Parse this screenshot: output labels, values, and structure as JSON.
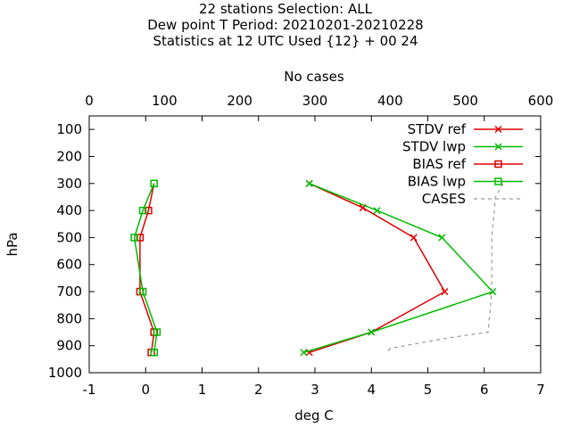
{
  "header": {
    "line1": "22 stations Selection: ALL",
    "line2": "Dew point T  Period: 20210201-20210228",
    "line3": "Statistics at 12 UTC  Used {12} + 00 24"
  },
  "chart_data": {
    "type": "line",
    "xlabel": "deg C",
    "x2label": "No cases",
    "ylabel": "hPa",
    "xlim": [
      -1,
      7
    ],
    "x2lim": [
      0,
      600
    ],
    "ylim": [
      1000,
      50
    ],
    "xticks": [
      "-1",
      "0",
      "1",
      "2",
      "3",
      "4",
      "5",
      "6",
      "7"
    ],
    "x2ticks": [
      "0",
      "100",
      "200",
      "300",
      "400",
      "500",
      "600"
    ],
    "yticks": [
      "100",
      "200",
      "300",
      "400",
      "500",
      "600",
      "700",
      "800",
      "900",
      "1000"
    ],
    "legend_position": "top-right",
    "series": [
      {
        "name": "STDV ref",
        "color": "#dd0000",
        "marker": "x",
        "axis": "x",
        "points": [
          [
            2.9,
            300
          ],
          [
            3.85,
            390
          ],
          [
            4.75,
            500
          ],
          [
            5.3,
            700
          ],
          [
            4.0,
            850
          ],
          [
            2.9,
            925
          ]
        ]
      },
      {
        "name": "STDV lwp",
        "color": "#00bb00",
        "marker": "x",
        "axis": "x",
        "points": [
          [
            2.9,
            300
          ],
          [
            4.1,
            400
          ],
          [
            5.25,
            500
          ],
          [
            6.15,
            700
          ],
          [
            4.0,
            850
          ],
          [
            2.8,
            925
          ]
        ]
      },
      {
        "name": "BIAS ref",
        "color": "#dd0000",
        "marker": "square",
        "axis": "x",
        "points": [
          [
            0.15,
            300
          ],
          [
            0.05,
            400
          ],
          [
            -0.1,
            500
          ],
          [
            -0.1,
            700
          ],
          [
            0.15,
            850
          ],
          [
            0.1,
            925
          ]
        ]
      },
      {
        "name": "BIAS lwp",
        "color": "#00bb00",
        "marker": "square",
        "axis": "x",
        "points": [
          [
            0.15,
            300
          ],
          [
            -0.05,
            400
          ],
          [
            -0.2,
            500
          ],
          [
            -0.05,
            700
          ],
          [
            0.2,
            850
          ],
          [
            0.15,
            925
          ]
        ]
      },
      {
        "name": "CASES",
        "color": "#999999",
        "marker": "none",
        "dashed": true,
        "axis": "x2",
        "points": [
          [
            550,
            300
          ],
          [
            540,
            350
          ],
          [
            535,
            500
          ],
          [
            535,
            700
          ],
          [
            530,
            850
          ],
          [
            480,
            870
          ],
          [
            400,
            910
          ],
          [
            395,
            925
          ]
        ]
      }
    ]
  }
}
